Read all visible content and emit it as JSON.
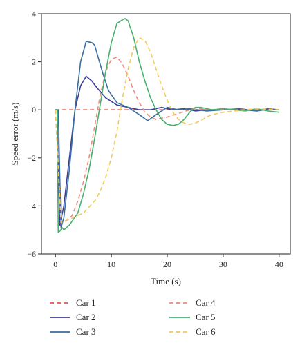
{
  "chart_data": {
    "type": "line",
    "xlabel": "Time (s)",
    "ylabel": "Speed error (m/s)",
    "xlim": [
      -2.5,
      42
    ],
    "ylim": [
      -6,
      4
    ],
    "xticks": [
      0,
      10,
      20,
      30,
      40
    ],
    "yticks": [
      -6,
      -4,
      -2,
      0,
      2,
      4
    ],
    "xtick_labels": [
      "0",
      "10",
      "20",
      "30",
      "40"
    ],
    "ytick_labels": [
      "−6",
      "−4",
      "−2",
      "0",
      "2",
      "4"
    ],
    "grid": false,
    "legend_position": "below",
    "series": [
      {
        "name": "Car 1",
        "color": "#e8554e",
        "style": "dashed",
        "x": [
          0,
          40
        ],
        "y": [
          0,
          0
        ]
      },
      {
        "name": "Car 2",
        "color": "#3b3f96",
        "style": "solid",
        "x": [
          0,
          0.3,
          0.5,
          0.8,
          1.5,
          2.5,
          3.5,
          4.5,
          5.5,
          6.5,
          7.5,
          9,
          11,
          13,
          15,
          17,
          19,
          21,
          23,
          25,
          27,
          30,
          33,
          36,
          38,
          40
        ],
        "y": [
          0,
          0,
          -2.5,
          -4.8,
          -4,
          -2,
          0,
          1,
          1.4,
          1.2,
          0.9,
          0.5,
          0.2,
          0.1,
          0,
          0,
          0.1,
          0,
          0.05,
          -0.05,
          0,
          0,
          0.02,
          -0.05,
          0.03,
          0
        ]
      },
      {
        "name": "Car 3",
        "color": "#3a6e9e",
        "style": "solid",
        "x": [
          0,
          0.5,
          1,
          1.5,
          2.5,
          3.5,
          4.5,
          5.5,
          6.5,
          7,
          7.5,
          8.5,
          9.5,
          11,
          13,
          15,
          16.5,
          18,
          20,
          22,
          24,
          27,
          30,
          33,
          36,
          38,
          40
        ],
        "y": [
          0,
          0,
          -4.9,
          -4.5,
          -2.5,
          0,
          2,
          2.85,
          2.8,
          2.7,
          2.3,
          1.5,
          0.8,
          0.3,
          0.1,
          -0.2,
          -0.45,
          -0.2,
          0.1,
          0,
          0.05,
          -0.05,
          0,
          0.05,
          -0.05,
          0.05,
          0
        ]
      },
      {
        "name": "Car 4",
        "color": "#f08a7c",
        "style": "dashed",
        "x": [
          0,
          1,
          2,
          3,
          4,
          5,
          6,
          7,
          8,
          9,
          10,
          11,
          12,
          13,
          14,
          15,
          16,
          17,
          18,
          20,
          22,
          24,
          26,
          28,
          30,
          33,
          36,
          40
        ],
        "y": [
          0,
          -4.7,
          -4.6,
          -4.4,
          -3.8,
          -3,
          -2,
          -0.7,
          0.6,
          1.6,
          2.1,
          2.2,
          1.9,
          1.4,
          0.8,
          0.3,
          -0.1,
          -0.3,
          -0.4,
          -0.3,
          -0.15,
          0,
          0.05,
          0,
          0,
          0,
          0,
          0
        ]
      },
      {
        "name": "Car 5",
        "color": "#47b06c",
        "style": "solid",
        "x": [
          0,
          0.3,
          0.5,
          0.8,
          1.2,
          1.5,
          2.5,
          4,
          5,
          6,
          7,
          8,
          9,
          10,
          11,
          12,
          12.5,
          13,
          14,
          15,
          16,
          17,
          18,
          19,
          20,
          21,
          22,
          23,
          24,
          25,
          26,
          28,
          30,
          32,
          34,
          36,
          38,
          40
        ],
        "y": [
          0,
          0,
          -5.1,
          -5.05,
          -4.9,
          -5,
          -4.8,
          -4.3,
          -3.5,
          -2.5,
          -1.2,
          0.2,
          1.6,
          2.8,
          3.6,
          3.75,
          3.8,
          3.7,
          3,
          2,
          1.2,
          0.5,
          0,
          -0.4,
          -0.6,
          -0.65,
          -0.6,
          -0.4,
          -0.1,
          0.1,
          0.1,
          0,
          0.05,
          0,
          -0.05,
          0.05,
          -0.05,
          -0.1
        ]
      },
      {
        "name": "Car 6",
        "color": "#f4c85a",
        "style": "dashed",
        "x": [
          0,
          1,
          3,
          5,
          7,
          8,
          9,
          10,
          11,
          12,
          13,
          14,
          15,
          16,
          17,
          18,
          19,
          20,
          21,
          22,
          23,
          24,
          25,
          26,
          27,
          28,
          30,
          32,
          34,
          36,
          40
        ],
        "y": [
          0,
          -4.7,
          -4.5,
          -4.3,
          -3.8,
          -3.4,
          -2.8,
          -2,
          -0.9,
          0.5,
          1.7,
          2.6,
          3.0,
          2.9,
          2.4,
          1.7,
          1,
          0.4,
          -0.1,
          -0.4,
          -0.55,
          -0.6,
          -0.55,
          -0.45,
          -0.3,
          -0.2,
          -0.1,
          -0.05,
          0,
          0.05,
          0
        ]
      }
    ]
  }
}
